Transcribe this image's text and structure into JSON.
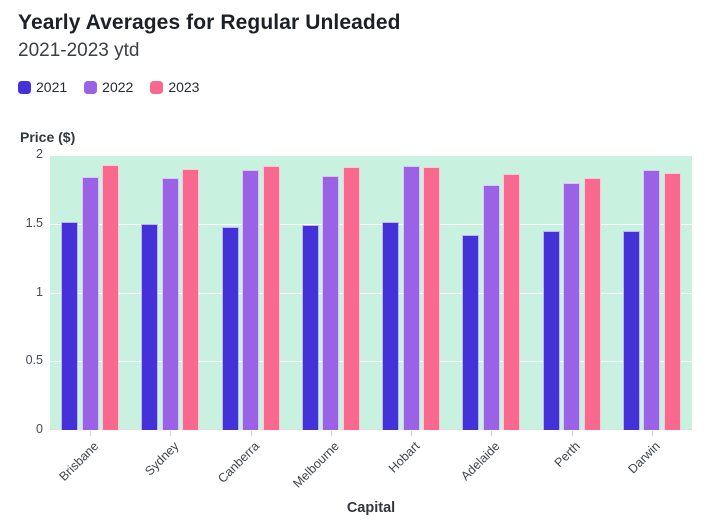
{
  "chart_data": {
    "type": "bar",
    "title": "Yearly Averages for Regular Unleaded",
    "subtitle": "2021-2023 ytd",
    "xlabel": "Capital",
    "ylabel": "Price ($)",
    "categories": [
      "Brisbane",
      "Sydney",
      "Canberra",
      "Melbourne",
      "Hobart",
      "Adelaide",
      "Perth",
      "Darwin"
    ],
    "series": [
      {
        "name": "2021",
        "color": "#4432d8",
        "values": [
          1.51,
          1.5,
          1.48,
          1.49,
          1.51,
          1.42,
          1.45,
          1.45
        ]
      },
      {
        "name": "2022",
        "color": "#9a63e6",
        "values": [
          1.84,
          1.83,
          1.89,
          1.85,
          1.92,
          1.78,
          1.8,
          1.89
        ]
      },
      {
        "name": "2023",
        "color": "#f9688e",
        "values": [
          1.93,
          1.9,
          1.92,
          1.91,
          1.91,
          1.86,
          1.83,
          1.87
        ]
      }
    ],
    "ylim": [
      0,
      2
    ],
    "yticks": [
      0,
      0.5,
      1,
      1.5,
      2
    ],
    "grid": true,
    "grid_color": "#ffffff",
    "plot_bg": "#c9f1df",
    "legend_position": "top-left"
  }
}
